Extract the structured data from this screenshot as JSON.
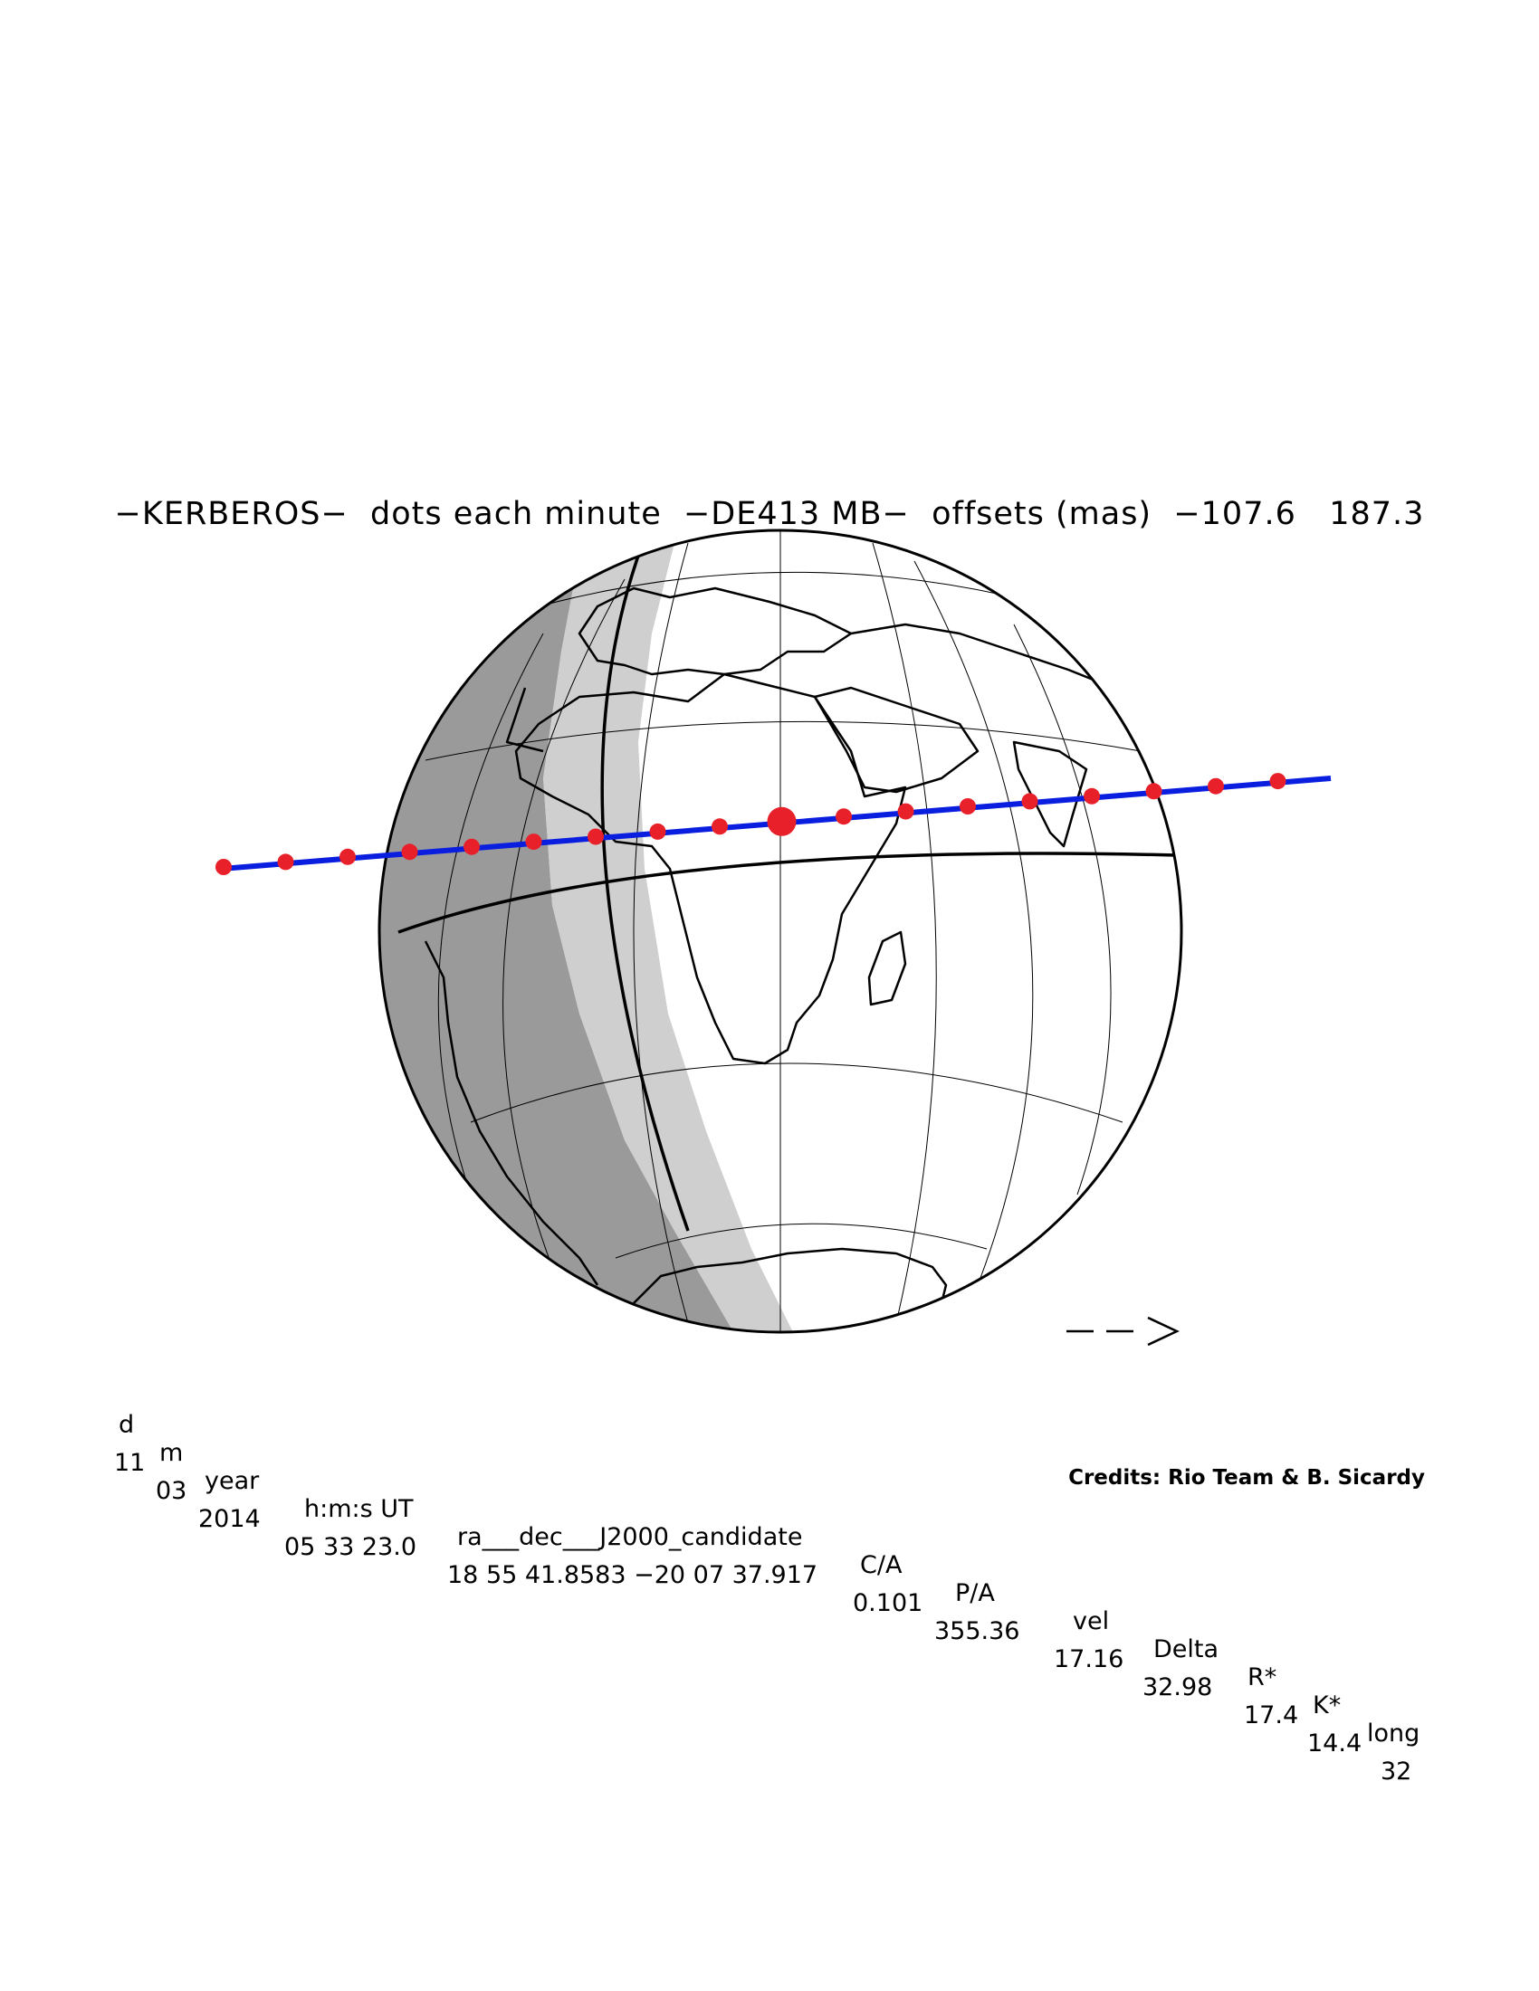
{
  "title": "−KERBEROS−  dots each minute  −DE413 MB−  offsets (mas)  −107.6   187.3",
  "direction_arrow": "− − >",
  "table": {
    "headers": [
      "d",
      "m",
      "year",
      "h:m:s UT",
      "ra___dec___J2000_candidate",
      "C/A",
      "P/A",
      "vel",
      "Delta",
      "R*",
      "K*",
      "long"
    ],
    "values": [
      "11",
      "03",
      "2014",
      "05 33 23.0",
      "18 55 41.8583 −20 07 37.917",
      "0.101",
      "355.36",
      "17.16",
      "32.98",
      "17.4",
      "14.4",
      "32"
    ]
  },
  "credits": "Credits: Rio Team & B. Sicardy",
  "colors": {
    "track_line": "#0a1ee0",
    "minute_dots": "#e8202a",
    "night_shade": "#9a9a9a",
    "twilight_shade": "#cfcfcf",
    "outline": "#000000"
  },
  "track": {
    "dot_count": 18,
    "central_dot_index": 9,
    "interval": "1 minute"
  }
}
